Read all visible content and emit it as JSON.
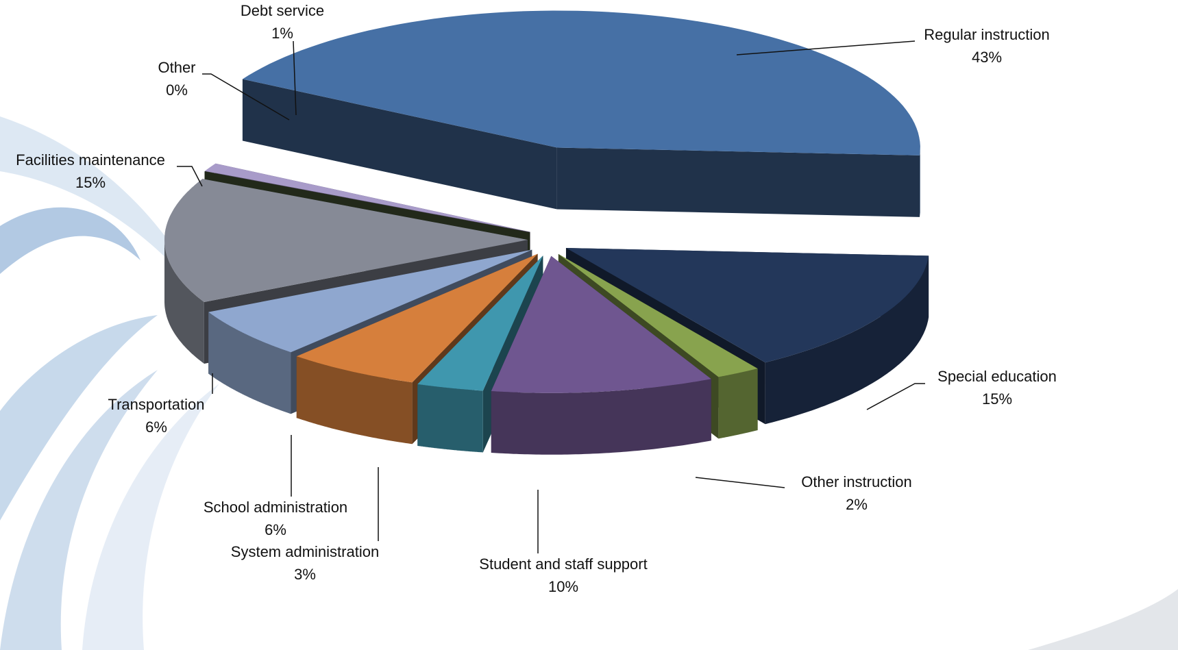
{
  "chart_data": {
    "type": "pie3d",
    "categories": [
      "Regular instruction",
      "Special education",
      "Other instruction",
      "Student and staff support",
      "System administration",
      "School administration",
      "Transportation",
      "Facilities maintenance",
      "Other",
      "Debt service"
    ],
    "values": [
      43,
      15,
      2,
      10,
      3,
      6,
      6,
      15,
      0,
      1
    ],
    "value_labels": [
      "43%",
      "15%",
      "2%",
      "10%",
      "3%",
      "6%",
      "6%",
      "15%",
      "0%",
      "1%"
    ],
    "colors": [
      "#4670a5",
      "#23375a",
      "#88a34e",
      "#6f5690",
      "#3f97ae",
      "#d67f3c",
      "#8fa7cf",
      "#868a96",
      "#4b5b3a",
      "#a89bc9"
    ]
  }
}
